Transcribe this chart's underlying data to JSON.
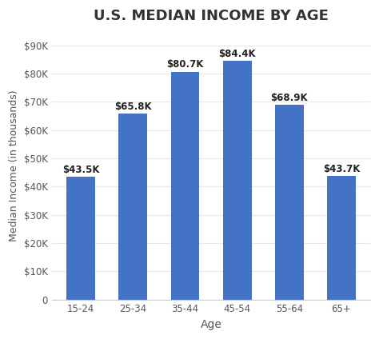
{
  "title": "U.S. MEDIAN INCOME BY AGE",
  "categories": [
    "15-24",
    "25-34",
    "35-44",
    "45-54",
    "55-64",
    "65+"
  ],
  "values": [
    43500,
    65800,
    80700,
    84400,
    68900,
    43700
  ],
  "labels": [
    "$43.5K",
    "$65.8K",
    "$80.7K",
    "$84.4K",
    "$68.9K",
    "$43.7K"
  ],
  "bar_color": "#4472C4",
  "xlabel": "Age",
  "ylabel": "Median Income (in thousands)",
  "ylim": [
    0,
    95000
  ],
  "yticks": [
    0,
    10000,
    20000,
    30000,
    40000,
    50000,
    60000,
    70000,
    80000,
    90000
  ],
  "ytick_labels": [
    "0",
    "$10K",
    "$20K",
    "$30K",
    "$40K",
    "$50K",
    "$60K",
    "$70K",
    "$80K",
    "$90K"
  ],
  "background_color": "#ffffff",
  "title_fontsize": 13,
  "title_color": "#333333",
  "label_fontsize": 8.5,
  "label_color": "#222222",
  "axis_label_fontsize": 10,
  "tick_fontsize": 8.5,
  "tick_color": "#555555",
  "bar_width": 0.55,
  "figsize": [
    4.74,
    4.24
  ],
  "dpi": 100
}
